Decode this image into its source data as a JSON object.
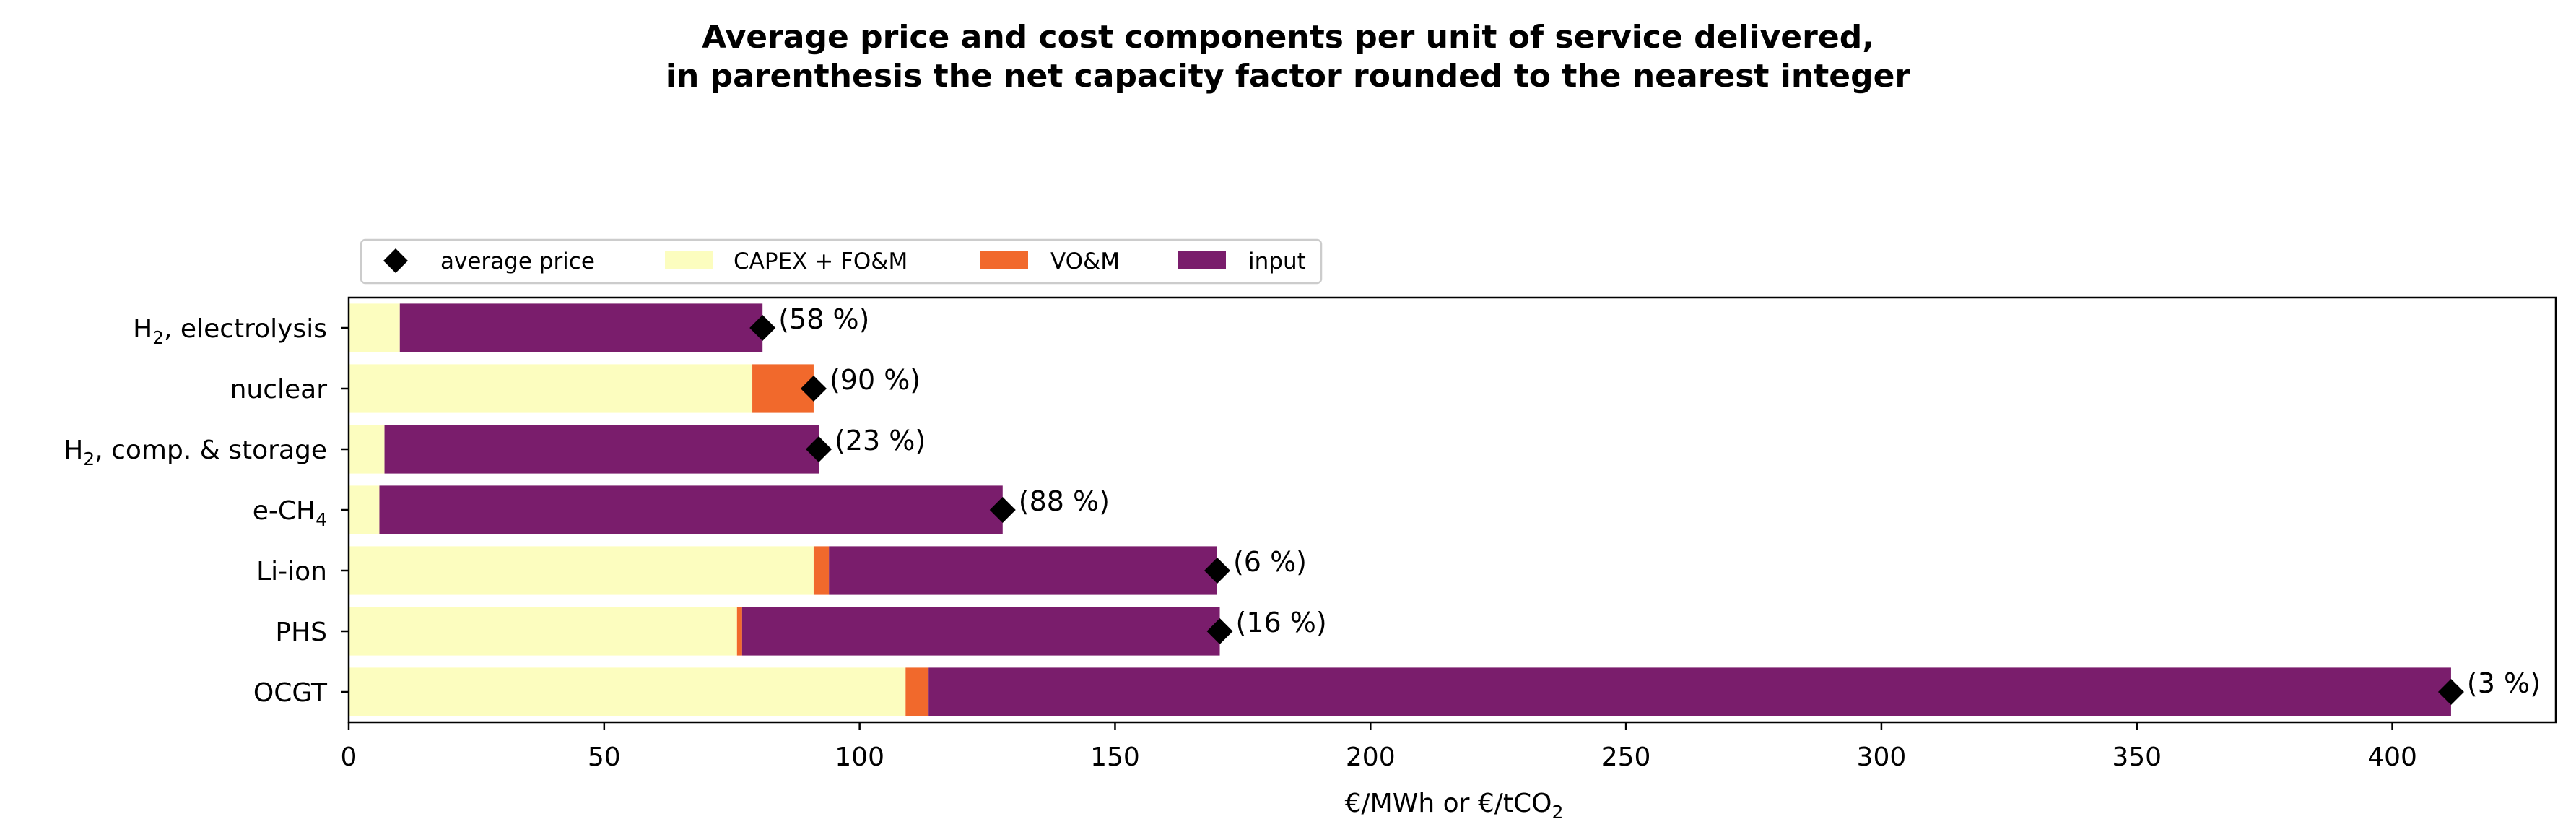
{
  "chart_data": {
    "type": "bar",
    "orientation": "horizontal",
    "stacked": true,
    "title": "Average price and cost components per unit of service delivered,",
    "subtitle": "in parenthesis the net capacity factor rounded to the nearest integer",
    "xlabel": "€/MWh or €/tCO",
    "xlabel_sub": "2",
    "ylabel": "",
    "xlim": [
      0,
      432
    ],
    "xticks": [
      0,
      50,
      100,
      150,
      200,
      250,
      300,
      350,
      400
    ],
    "grid": false,
    "legend_position": "top-left",
    "categories": [
      {
        "base": "H",
        "sub": "2",
        "rest": ", electrolysis"
      },
      {
        "base": "nuclear",
        "sub": "",
        "rest": ""
      },
      {
        "base": "H",
        "sub": "2",
        "rest": ", comp. & storage"
      },
      {
        "base": "e-CH",
        "sub": "4",
        "rest": ""
      },
      {
        "base": "Li-ion",
        "sub": "",
        "rest": ""
      },
      {
        "base": "PHS",
        "sub": "",
        "rest": ""
      },
      {
        "base": "OCGT",
        "sub": "",
        "rest": ""
      }
    ],
    "series": [
      {
        "name": "CAPEX + FO&M",
        "color": "#fcfdbf",
        "values": [
          10,
          79,
          7,
          6,
          91,
          76,
          109
        ]
      },
      {
        "name": "VO&M",
        "color": "#f1692c",
        "values": [
          0,
          12,
          0,
          0,
          3,
          1,
          4.5
        ]
      },
      {
        "name": "input",
        "color": "#7a1d6c",
        "values": [
          71,
          0,
          85,
          122,
          76,
          93.5,
          298
        ]
      }
    ],
    "average_price": {
      "name": "average price",
      "color": "#000000",
      "values": [
        81,
        91,
        92,
        128,
        170,
        170.5,
        411.5
      ]
    },
    "capacity_factor_labels": [
      "(58 %)",
      "(90 %)",
      "(23 %)",
      "(88 %)",
      "(6 %)",
      "(16 %)",
      "(3 %)"
    ]
  }
}
